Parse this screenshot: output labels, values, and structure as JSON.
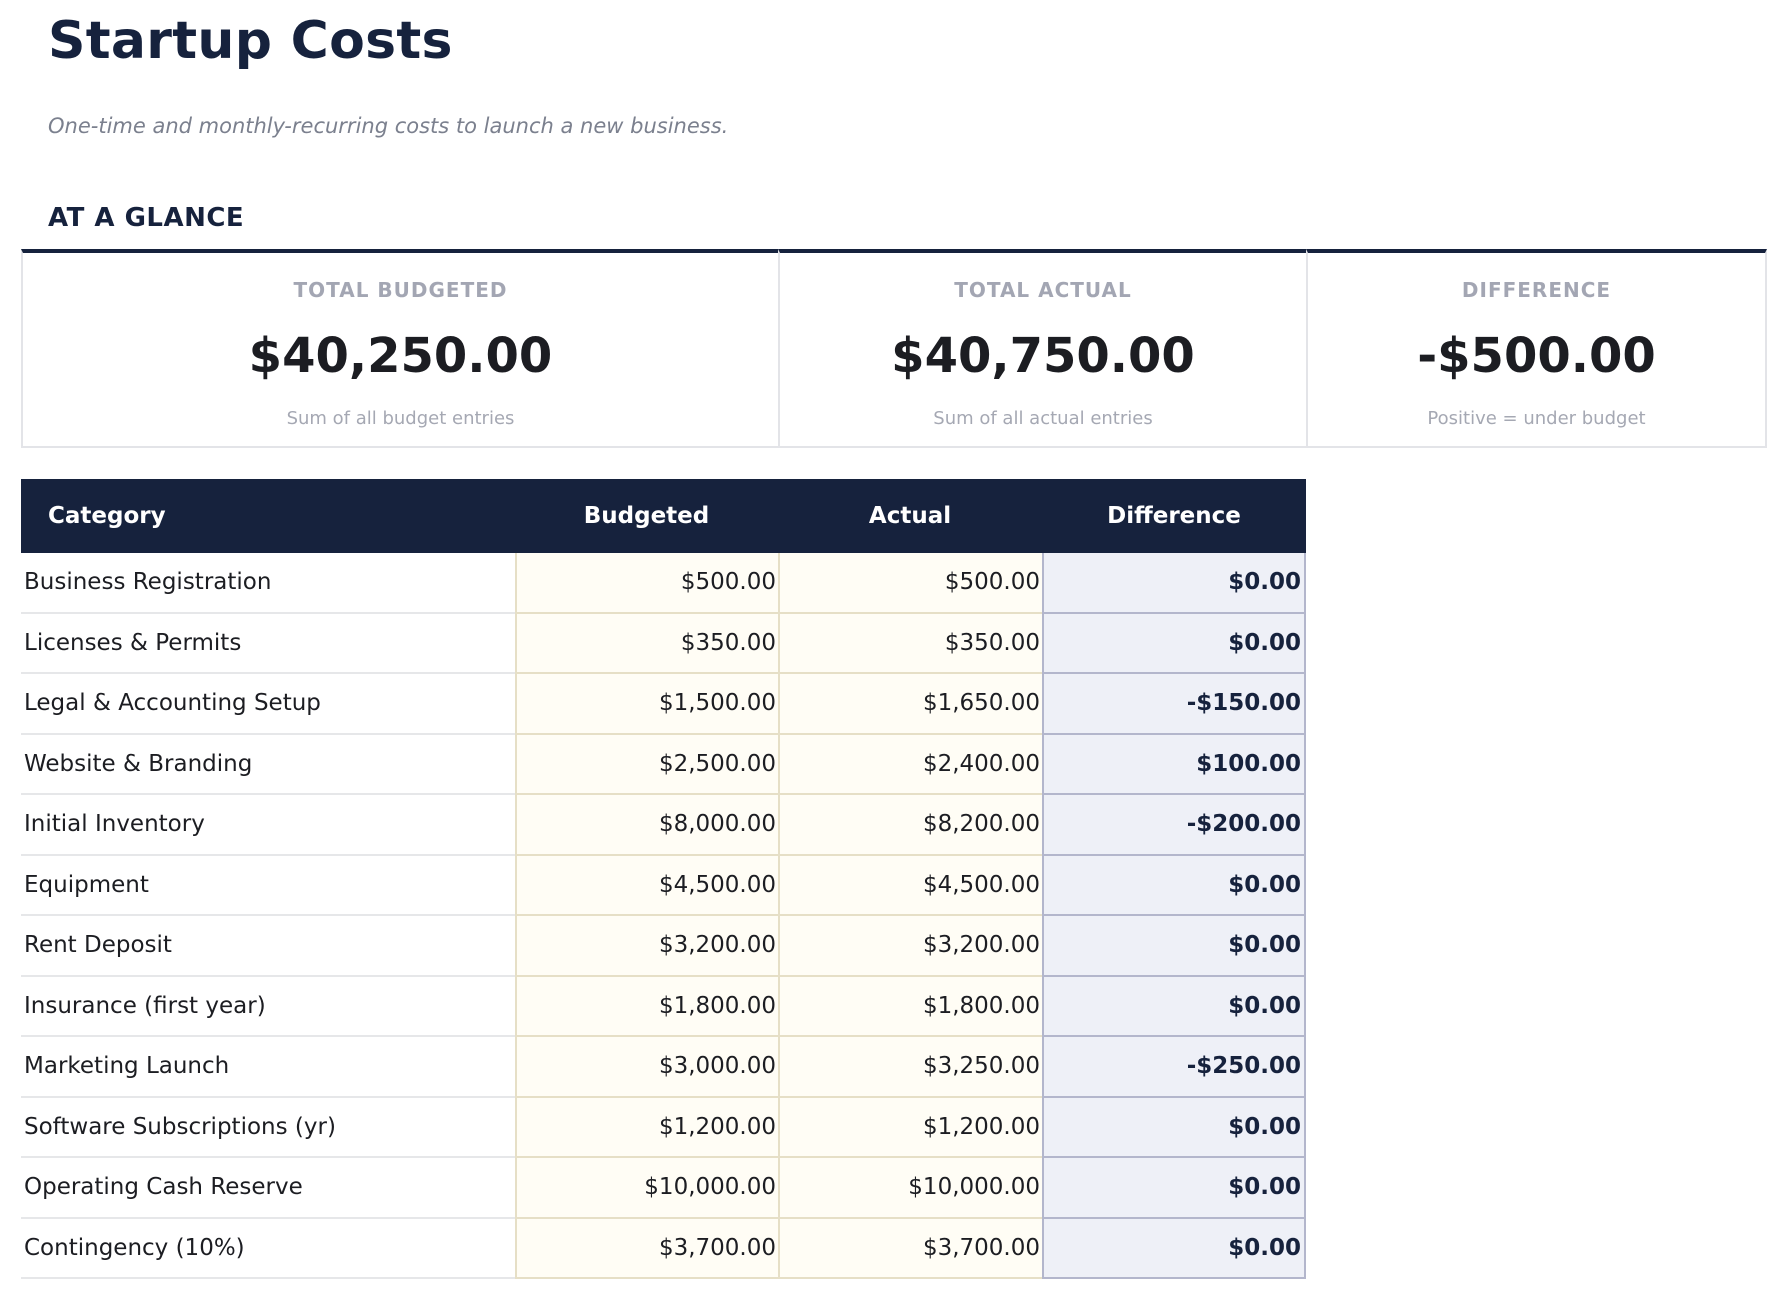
{
  "header": {
    "title": "Startup Costs",
    "subtitle": "One-time and monthly-recurring costs to launch a new business."
  },
  "glance": {
    "heading": "AT A GLANCE",
    "cards": [
      {
        "label": "TOTAL BUDGETED",
        "value": "$40,250.00",
        "note": "Sum of all budget entries"
      },
      {
        "label": "TOTAL ACTUAL",
        "value": "$40,750.00",
        "note": "Sum of all actual entries"
      },
      {
        "label": "DIFFERENCE",
        "value": "-$500.00",
        "note": "Positive = under budget"
      }
    ]
  },
  "table": {
    "columns": [
      "Category",
      "Budgeted",
      "Actual",
      "Difference"
    ],
    "rows": [
      {
        "category": "Business Registration",
        "budgeted": "$500.00",
        "actual": "$500.00",
        "difference": "$0.00"
      },
      {
        "category": "Licenses & Permits",
        "budgeted": "$350.00",
        "actual": "$350.00",
        "difference": "$0.00"
      },
      {
        "category": "Legal & Accounting Setup",
        "budgeted": "$1,500.00",
        "actual": "$1,650.00",
        "difference": "-$150.00"
      },
      {
        "category": "Website & Branding",
        "budgeted": "$2,500.00",
        "actual": "$2,400.00",
        "difference": "$100.00"
      },
      {
        "category": "Initial Inventory",
        "budgeted": "$8,000.00",
        "actual": "$8,200.00",
        "difference": "-$200.00"
      },
      {
        "category": "Equipment",
        "budgeted": "$4,500.00",
        "actual": "$4,500.00",
        "difference": "$0.00"
      },
      {
        "category": "Rent Deposit",
        "budgeted": "$3,200.00",
        "actual": "$3,200.00",
        "difference": "$0.00"
      },
      {
        "category": "Insurance (first year)",
        "budgeted": "$1,800.00",
        "actual": "$1,800.00",
        "difference": "$0.00"
      },
      {
        "category": "Marketing Launch",
        "budgeted": "$3,000.00",
        "actual": "$3,250.00",
        "difference": "-$250.00"
      },
      {
        "category": "Software Subscriptions (yr)",
        "budgeted": "$1,200.00",
        "actual": "$1,200.00",
        "difference": "$0.00"
      },
      {
        "category": "Operating Cash Reserve",
        "budgeted": "$10,000.00",
        "actual": "$10,000.00",
        "difference": "$0.00"
      },
      {
        "category": "Contingency (10%)",
        "budgeted": "$3,700.00",
        "actual": "$3,700.00",
        "difference": "$0.00"
      }
    ]
  },
  "colors": {
    "navy": "#16223d",
    "budget_cell_bg": "#fffdf5",
    "difference_cell_bg": "#eef0f7",
    "muted_text": "#a3a6b3"
  }
}
